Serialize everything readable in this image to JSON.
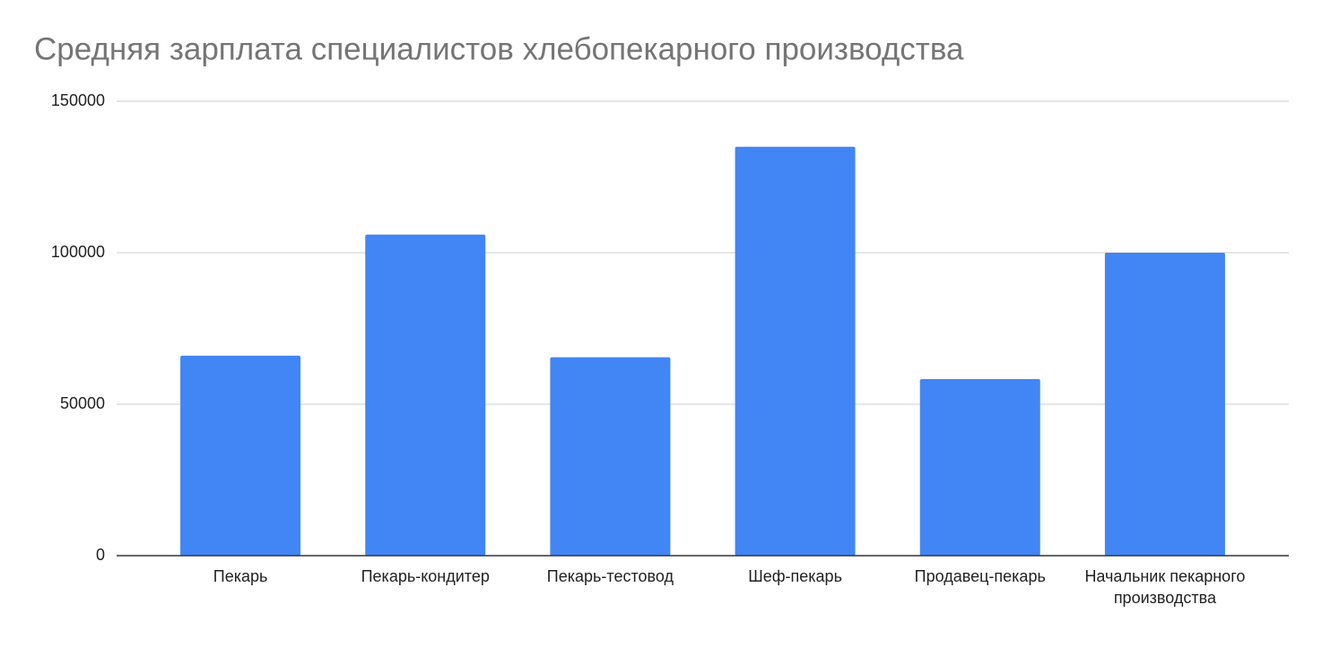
{
  "chart_data": {
    "type": "bar",
    "title": "Средняя зарплата специалистов хлебопекарного производства",
    "categories": [
      "Пекарь",
      "Пекарь-кондитер",
      "Пекарь-тестовод",
      "Шеф-пекарь",
      "Продавец-пекарь",
      "Начальник пекарного производства"
    ],
    "values": [
      66000,
      106000,
      65500,
      135000,
      58300,
      100000
    ],
    "color": "#4285f4",
    "ylim": [
      0,
      150000
    ],
    "yticks": [
      0,
      50000,
      100000,
      150000
    ],
    "grid": true
  }
}
